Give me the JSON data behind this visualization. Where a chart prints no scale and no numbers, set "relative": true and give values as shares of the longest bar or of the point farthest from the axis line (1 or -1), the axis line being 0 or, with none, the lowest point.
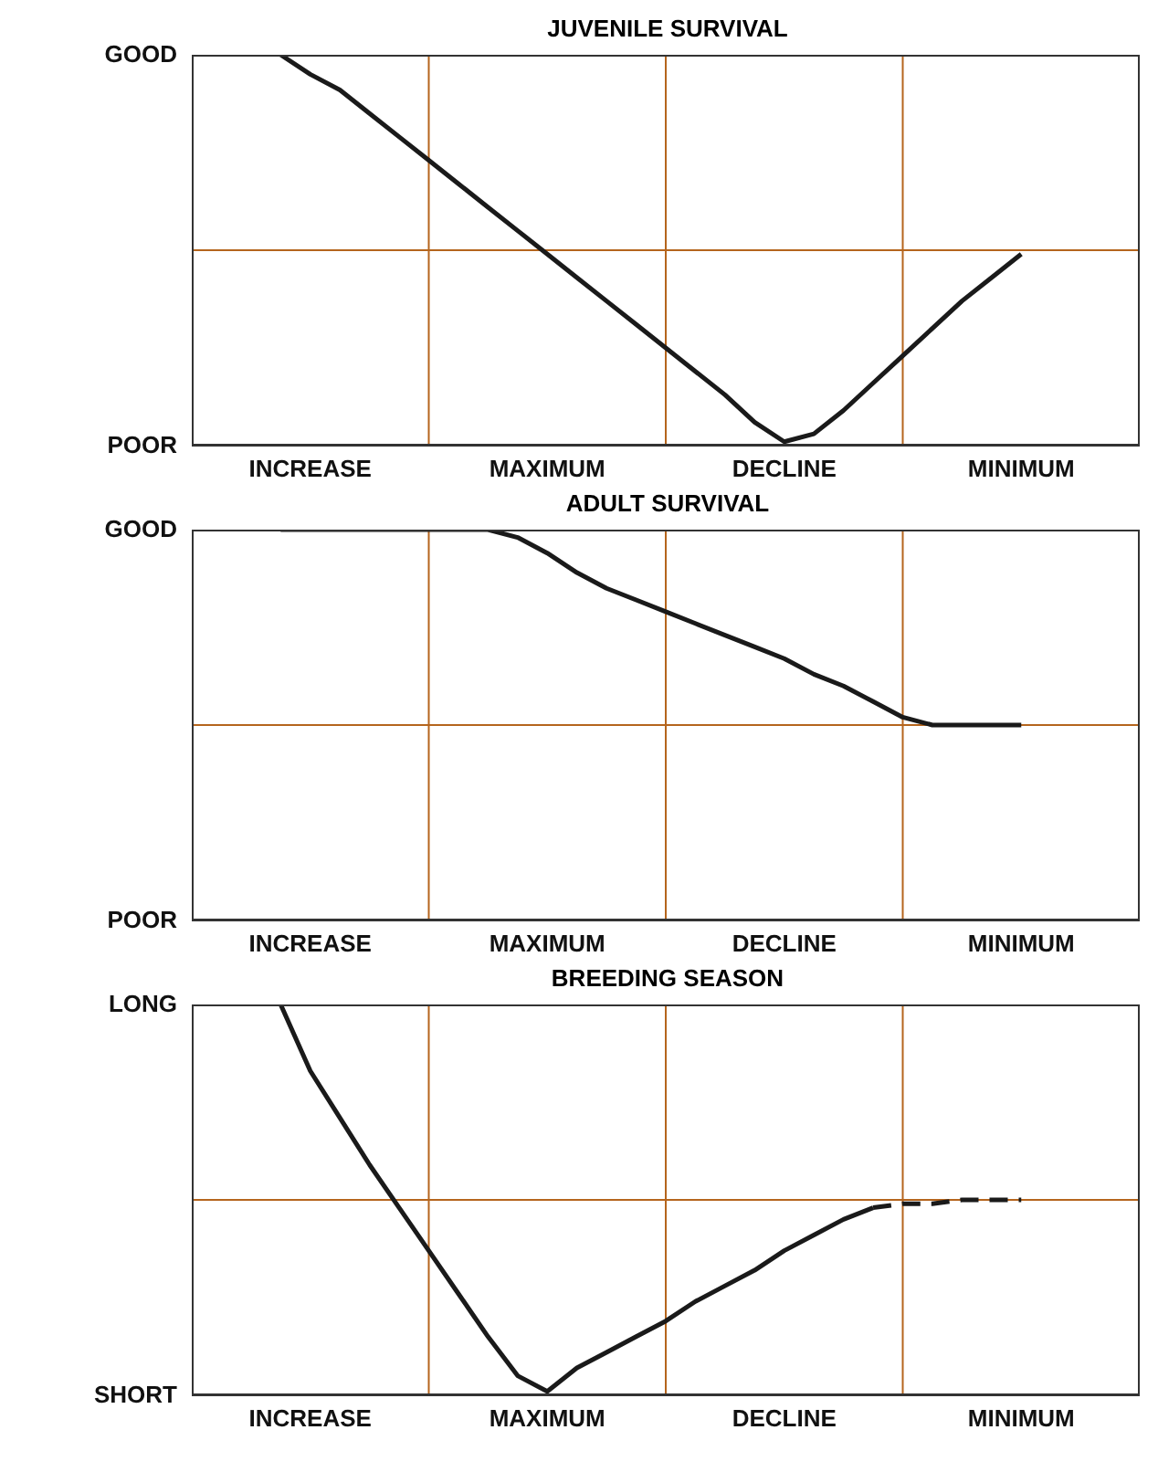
{
  "chart_data": [
    {
      "type": "line",
      "title": "JUVENILE SURVIVAL",
      "relative": true,
      "marker": "none",
      "grid": true,
      "categories": [
        null,
        "INCREASE",
        null,
        null,
        null,
        null,
        null,
        null,
        null,
        "MAXIMUM",
        null,
        null,
        null,
        null,
        null,
        null,
        null,
        "DECLINE",
        null,
        null,
        null,
        null,
        null,
        null,
        null,
        "MINIMUM"
      ],
      "annotations": [
        "GOOD",
        "POOR"
      ],
      "series": [
        {
          "color": "#1a1a1a",
          "line_style": "solid",
          "values": [
            1,
            0.95,
            0.91,
            0.85,
            0.79,
            0.73,
            0.67,
            0.61,
            0.55,
            0.49,
            0.43,
            0.37,
            0.31,
            0.25,
            0.19,
            0.13,
            0.06,
            0.01,
            0.03,
            0.09,
            0.16,
            0.23,
            0.3,
            0.37,
            0.43,
            0.49
          ]
        }
      ]
    },
    {
      "type": "line",
      "title": "ADULT SURVIVAL",
      "relative": true,
      "marker": "none",
      "grid": true,
      "categories": [
        null,
        "INCREASE",
        null,
        null,
        null,
        null,
        null,
        null,
        null,
        "MAXIMUM",
        null,
        null,
        null,
        null,
        null,
        null,
        null,
        "DECLINE",
        null,
        null,
        null,
        null,
        null,
        null,
        null,
        "MINIMUM"
      ],
      "annotations": [
        "GOOD",
        "POOR"
      ],
      "series": [
        {
          "color": "#1a1a1a",
          "line_style": "solid",
          "values": [
            1,
            1,
            1,
            1,
            1,
            1,
            1,
            1,
            0.98,
            0.94,
            0.89,
            0.85,
            0.82,
            0.79,
            0.76,
            0.73,
            0.7,
            0.67,
            0.63,
            0.6,
            0.56,
            0.52,
            0.5,
            0.5,
            0.5,
            0.5
          ]
        }
      ]
    },
    {
      "type": "line",
      "title": "BREEDING SEASON",
      "relative": true,
      "marker": "none",
      "grid": true,
      "categories": [
        null,
        "INCREASE",
        null,
        null,
        null,
        null,
        null,
        null,
        null,
        "MAXIMUM",
        null,
        null,
        null,
        null,
        null,
        null,
        null,
        "DECLINE",
        null,
        null,
        null,
        null,
        null,
        null,
        null,
        "MINIMUM"
      ],
      "annotations": [
        "LONG",
        "SHORT"
      ],
      "series": [
        {
          "color": "#1a1a1a",
          "line_style": "solid",
          "values": [
            1,
            0.83,
            0.71,
            0.59,
            0.48,
            0.37,
            0.26,
            0.15,
            0.05,
            0.01,
            0.07,
            0.11,
            0.15,
            0.19,
            0.24,
            0.28,
            0.32,
            0.37,
            0.41,
            0.45,
            0.48,
            null,
            null,
            null,
            null,
            null
          ]
        },
        {
          "color": "#1a1a1a",
          "line_style": "dashed",
          "values": [
            null,
            null,
            null,
            null,
            null,
            null,
            null,
            null,
            null,
            null,
            null,
            null,
            null,
            null,
            null,
            null,
            null,
            null,
            null,
            null,
            0.48,
            0.49,
            0.49,
            0.5,
            0.5,
            0.5
          ]
        }
      ]
    }
  ]
}
